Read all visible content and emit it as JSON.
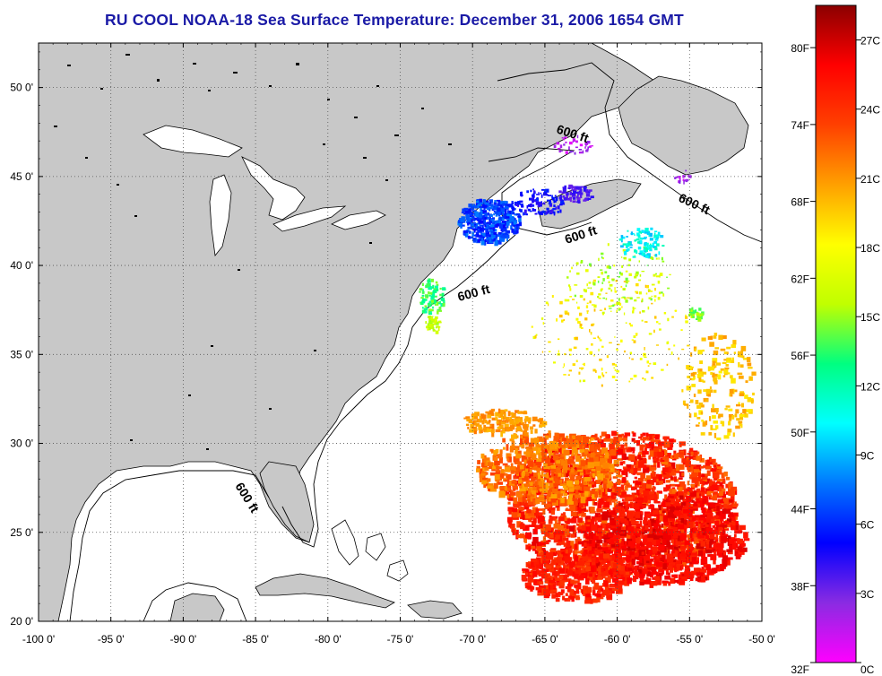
{
  "title": "RU COOL  NOAA-18  Sea Surface Temperature:  December 31, 2006 1654 GMT",
  "map": {
    "lon_range": [
      -100,
      -50
    ],
    "lat_range": [
      20,
      52.5
    ],
    "lon_ticks": [
      "-100 0'",
      "-95 0'",
      "-90 0'",
      "-85 0'",
      "-80 0'",
      "-75 0'",
      "-70 0'",
      "-65 0'",
      "-60 0'",
      "-55 0'",
      "-50 0'"
    ],
    "lat_ticks": [
      "50 0'",
      "45 0'",
      "40 0'",
      "35 0'",
      "30 0'",
      "25 0'",
      "20 0'"
    ],
    "contour_labels": [
      "600 ft",
      "600 ft",
      "600 ft",
      "600 ft",
      "600 ft"
    ],
    "land_color": "#c8c8c8",
    "ocean_color": "#ffffff"
  },
  "colorbar": {
    "fahrenheit_labels": [
      "80F",
      "74F",
      "68F",
      "62F",
      "56F",
      "50F",
      "44F",
      "38F",
      "32F"
    ],
    "celsius_labels": [
      "27C",
      "24C",
      "21C",
      "18C",
      "15C",
      "12C",
      "9C",
      "6C",
      "3C",
      "0C"
    ],
    "range_c": [
      0,
      28.5
    ],
    "colors": [
      "#ff00ff",
      "#8a2be2",
      "#0000ff",
      "#0078ff",
      "#00ffff",
      "#00ff80",
      "#c0ff00",
      "#ffff00",
      "#ffa000",
      "#ff4000",
      "#ff0000",
      "#8b0000"
    ]
  }
}
